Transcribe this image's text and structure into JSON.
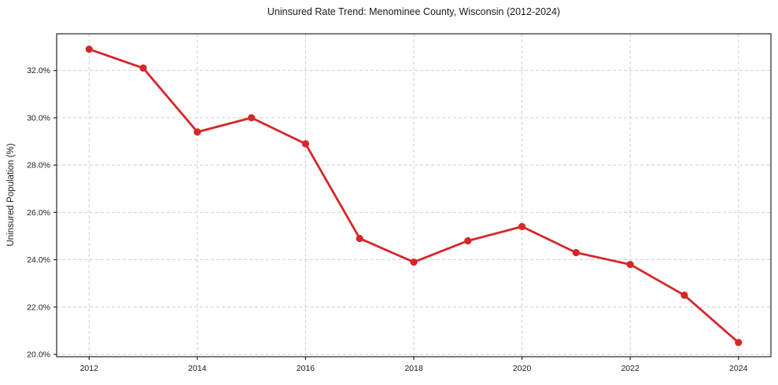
{
  "chart_data": {
    "type": "line",
    "title": "Uninsured Rate Trend: Menominee County, Wisconsin (2012-2024)",
    "xlabel": "",
    "ylabel": "Uninsured Population (%)",
    "x": [
      2012,
      2013,
      2014,
      2015,
      2016,
      2017,
      2018,
      2019,
      2020,
      2021,
      2022,
      2023,
      2024
    ],
    "series": [
      {
        "name": "Uninsured Population (%)",
        "values": [
          32.9,
          32.1,
          29.4,
          30.0,
          28.9,
          24.9,
          23.9,
          24.8,
          25.4,
          24.3,
          23.8,
          22.5,
          20.5
        ]
      }
    ],
    "xticks": [
      2012,
      2014,
      2016,
      2018,
      2020,
      2022,
      2024
    ],
    "xtick_labels": [
      "2012",
      "2014",
      "2016",
      "2018",
      "2020",
      "2022",
      "2024"
    ],
    "yticks": [
      20,
      22,
      24,
      26,
      28,
      30,
      32
    ],
    "ytick_labels": [
      "20.0%",
      "22.0%",
      "24.0%",
      "26.0%",
      "28.0%",
      "30.0%",
      "32.0%"
    ],
    "xlim": [
      2011.4,
      2024.6
    ],
    "ylim": [
      19.9,
      33.55
    ],
    "grid": true,
    "grid_style": "dashed",
    "legend_position": "none",
    "marker": "circle",
    "colors": {
      "line": "#d62728",
      "marker": "#d62728",
      "grid": "#cfcfcf",
      "spine": "#262626",
      "tick": "#262626",
      "text": "#1a1a1a",
      "background": "#ffffff"
    }
  }
}
